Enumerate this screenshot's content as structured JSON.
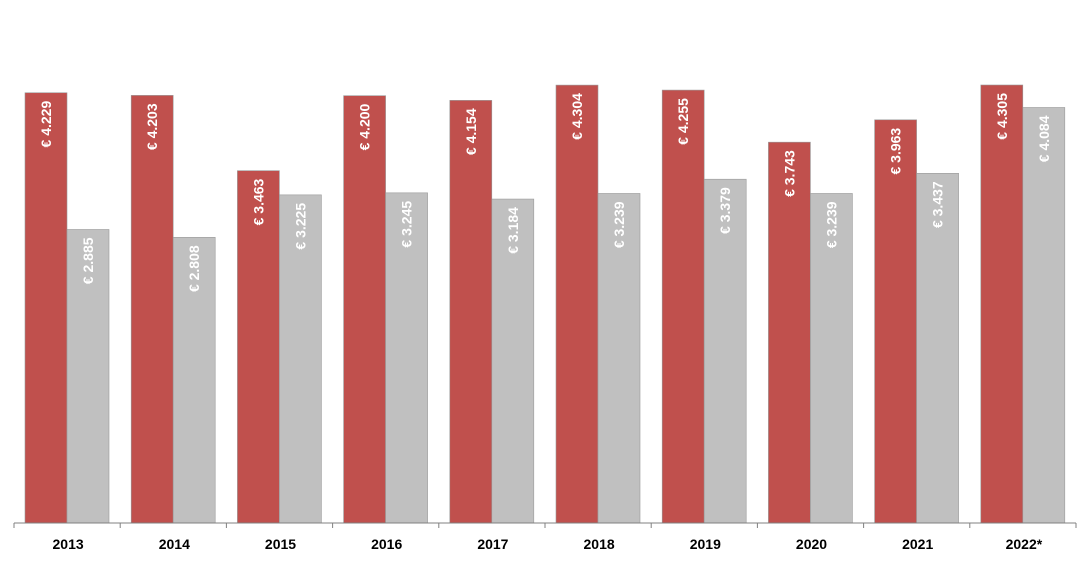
{
  "chart_data": {
    "type": "bar",
    "categories": [
      "2013",
      "2014",
      "2015",
      "2016",
      "2017",
      "2018",
      "2019",
      "2020",
      "2021",
      "2022*"
    ],
    "series": [
      {
        "color": "#c0504d",
        "values": [
          4229,
          4203,
          3463,
          4200,
          4154,
          4304,
          4255,
          3743,
          3963,
          4305
        ],
        "labels": [
          "€ 4.229",
          "€ 4.203",
          "€ 3.463",
          "€ 4.200",
          "€ 4.154",
          "€ 4.304",
          "€ 4.255",
          "€ 3.743",
          "€ 3.963",
          "€ 4.305"
        ]
      },
      {
        "color": "#c0c0c0",
        "values": [
          2885,
          2808,
          3225,
          3245,
          3184,
          3239,
          3379,
          3239,
          3437,
          4084
        ],
        "labels": [
          "€ 2.885",
          "€ 2.808",
          "€ 3.225",
          "€ 3.245",
          "€ 3.184",
          "€ 3.239",
          "€ 3.379",
          "€ 3.239",
          "€ 3.437",
          "€ 4.084"
        ]
      }
    ],
    "ylim": [
      0,
      4305
    ],
    "grid": false,
    "axis_color": "#808080"
  }
}
